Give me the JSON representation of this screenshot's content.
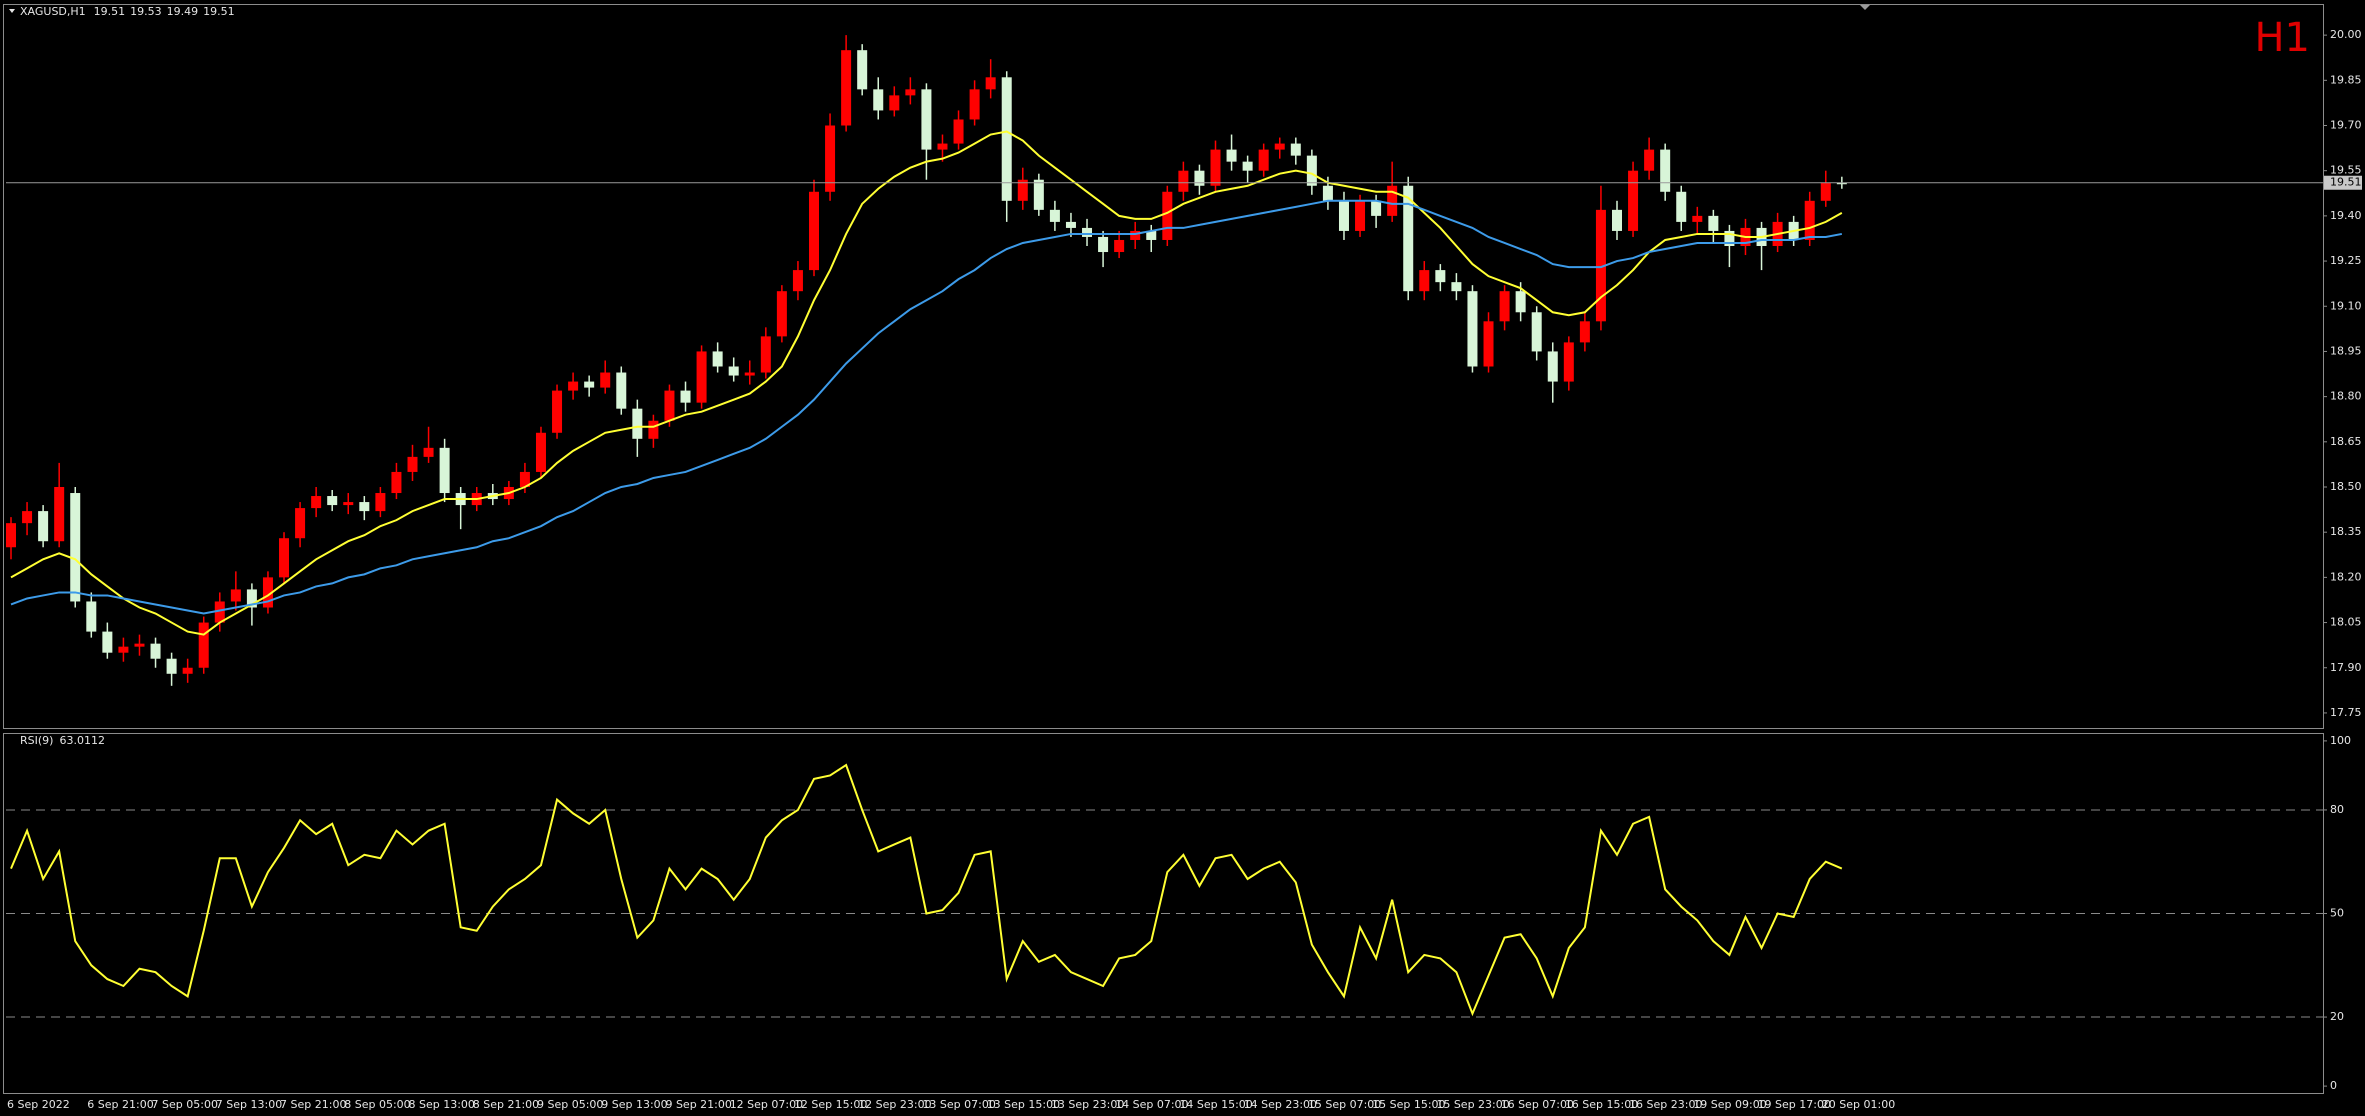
{
  "chart_data": [
    {
      "type": "candlestick",
      "title": "XAGUSD,H1",
      "annotation": "H1",
      "annotation_color": "#e00000",
      "up_color": "#ff0000",
      "down_color": "#d8f5d8",
      "price_line_color": "#9a9a9a",
      "ylim": [
        17.7,
        20.1
      ],
      "yticks": [
        17.75,
        {
          "value": 17.9,
          "label": "17.90"
        },
        18.05,
        {
          "value": 18.2,
          "label": "18.20"
        },
        18.35,
        {
          "value": 18.5,
          "label": "18.50"
        },
        18.65,
        {
          "value": 18.8,
          "label": "18.80"
        },
        18.95,
        {
          "value": 19.1,
          "label": "19.10"
        },
        19.25,
        {
          "value": 19.4,
          "label": "19.40"
        },
        19.55,
        {
          "value": 19.7,
          "label": "19.70"
        },
        19.85,
        {
          "value": 20,
          "label": "20.00"
        }
      ],
      "categories": [
        "6 Sep 2022",
        null,
        null,
        null,
        null,
        "6 Sep 21:00",
        null,
        null,
        null,
        "7 Sep 05:00",
        null,
        null,
        null,
        "7 Sep 13:00",
        null,
        null,
        null,
        "7 Sep 21:00",
        null,
        null,
        null,
        "8 Sep 05:00",
        null,
        null,
        null,
        "8 Sep 13:00",
        null,
        null,
        null,
        "8 Sep 21:00",
        null,
        null,
        null,
        "9 Sep 05:00",
        null,
        null,
        null,
        "9 Sep 13:00",
        null,
        null,
        null,
        "9 Sep 21:00",
        null,
        null,
        null,
        "12 Sep 07:00",
        null,
        null,
        null,
        "12 Sep 15:00",
        null,
        null,
        null,
        "12 Sep 23:00",
        null,
        null,
        null,
        "13 Sep 07:00",
        null,
        null,
        null,
        "13 Sep 15:00",
        null,
        null,
        null,
        "13 Sep 23:00",
        null,
        null,
        null,
        "14 Sep 07:00",
        null,
        null,
        null,
        "14 Sep 15:00",
        null,
        null,
        null,
        "14 Sep 23:00",
        null,
        null,
        null,
        "15 Sep 07:00",
        null,
        null,
        null,
        "15 Sep 15:00",
        null,
        null,
        null,
        "15 Sep 23:00",
        null,
        null,
        null,
        "16 Sep 07:00",
        null,
        null,
        null,
        "16 Sep 15:00",
        null,
        null,
        null,
        "16 Sep 23:00",
        null,
        null,
        null,
        "19 Sep 09:00",
        null,
        null,
        null,
        "19 Sep 17:00",
        null,
        null,
        null,
        "20 Sep 01:00",
        null
      ],
      "ohlc": [
        [
          18.3,
          18.4,
          18.26,
          18.38
        ],
        [
          18.38,
          18.45,
          18.34,
          18.42
        ],
        [
          18.42,
          18.44,
          18.3,
          18.32
        ],
        [
          18.32,
          18.58,
          18.3,
          18.5
        ],
        [
          18.48,
          18.5,
          18.1,
          18.12
        ],
        [
          18.12,
          18.15,
          18.0,
          18.02
        ],
        [
          18.02,
          18.05,
          17.93,
          17.95
        ],
        [
          17.95,
          18.0,
          17.92,
          17.97
        ],
        [
          17.97,
          18.01,
          17.94,
          17.98
        ],
        [
          17.98,
          18.0,
          17.9,
          17.93
        ],
        [
          17.93,
          17.95,
          17.84,
          17.88
        ],
        [
          17.88,
          17.93,
          17.85,
          17.9
        ],
        [
          17.9,
          18.07,
          17.88,
          18.05
        ],
        [
          18.05,
          18.15,
          18.02,
          18.12
        ],
        [
          18.12,
          18.22,
          18.09,
          18.16
        ],
        [
          18.16,
          18.18,
          18.04,
          18.1
        ],
        [
          18.1,
          18.22,
          18.08,
          18.2
        ],
        [
          18.2,
          18.35,
          18.18,
          18.33
        ],
        [
          18.33,
          18.45,
          18.3,
          18.43
        ],
        [
          18.43,
          18.5,
          18.4,
          18.47
        ],
        [
          18.47,
          18.49,
          18.42,
          18.44
        ],
        [
          18.44,
          18.48,
          18.41,
          18.45
        ],
        [
          18.45,
          18.47,
          18.39,
          18.42
        ],
        [
          18.42,
          18.5,
          18.4,
          18.48
        ],
        [
          18.48,
          18.58,
          18.46,
          18.55
        ],
        [
          18.55,
          18.64,
          18.52,
          18.6
        ],
        [
          18.6,
          18.7,
          18.58,
          18.63
        ],
        [
          18.63,
          18.66,
          18.45,
          18.48
        ],
        [
          18.48,
          18.5,
          18.36,
          18.44
        ],
        [
          18.44,
          18.5,
          18.42,
          18.48
        ],
        [
          18.48,
          18.51,
          18.44,
          18.46
        ],
        [
          18.46,
          18.52,
          18.44,
          18.5
        ],
        [
          18.5,
          18.58,
          18.48,
          18.55
        ],
        [
          18.55,
          18.7,
          18.53,
          18.68
        ],
        [
          18.68,
          18.84,
          18.66,
          18.82
        ],
        [
          18.82,
          18.88,
          18.79,
          18.85
        ],
        [
          18.85,
          18.87,
          18.8,
          18.83
        ],
        [
          18.83,
          18.92,
          18.81,
          18.88
        ],
        [
          18.88,
          18.9,
          18.74,
          18.76
        ],
        [
          18.76,
          18.79,
          18.6,
          18.66
        ],
        [
          18.66,
          18.74,
          18.63,
          18.72
        ],
        [
          18.72,
          18.84,
          18.7,
          18.82
        ],
        [
          18.82,
          18.85,
          18.75,
          18.78
        ],
        [
          18.78,
          18.97,
          18.76,
          18.95
        ],
        [
          18.95,
          18.98,
          18.88,
          18.9
        ],
        [
          18.9,
          18.93,
          18.85,
          18.87
        ],
        [
          18.87,
          18.92,
          18.84,
          18.88
        ],
        [
          18.88,
          19.03,
          18.86,
          19.0
        ],
        [
          19.0,
          19.17,
          18.98,
          19.15
        ],
        [
          19.15,
          19.25,
          19.12,
          19.22
        ],
        [
          19.22,
          19.52,
          19.2,
          19.48
        ],
        [
          19.48,
          19.74,
          19.45,
          19.7
        ],
        [
          19.7,
          20.0,
          19.68,
          19.95
        ],
        [
          19.95,
          19.97,
          19.8,
          19.82
        ],
        [
          19.82,
          19.86,
          19.72,
          19.75
        ],
        [
          19.75,
          19.83,
          19.73,
          19.8
        ],
        [
          19.8,
          19.86,
          19.77,
          19.82
        ],
        [
          19.82,
          19.84,
          19.52,
          19.62
        ],
        [
          19.62,
          19.67,
          19.58,
          19.64
        ],
        [
          19.64,
          19.75,
          19.62,
          19.72
        ],
        [
          19.72,
          19.85,
          19.7,
          19.82
        ],
        [
          19.82,
          19.92,
          19.79,
          19.86
        ],
        [
          19.86,
          19.88,
          19.38,
          19.45
        ],
        [
          19.45,
          19.56,
          19.42,
          19.52
        ],
        [
          19.52,
          19.54,
          19.4,
          19.42
        ],
        [
          19.42,
          19.45,
          19.35,
          19.38
        ],
        [
          19.38,
          19.41,
          19.33,
          19.36
        ],
        [
          19.36,
          19.39,
          19.3,
          19.33
        ],
        [
          19.33,
          19.35,
          19.23,
          19.28
        ],
        [
          19.28,
          19.35,
          19.26,
          19.32
        ],
        [
          19.32,
          19.38,
          19.29,
          19.35
        ],
        [
          19.35,
          19.37,
          19.28,
          19.32
        ],
        [
          19.32,
          19.5,
          19.3,
          19.48
        ],
        [
          19.48,
          19.58,
          19.45,
          19.55
        ],
        [
          19.55,
          19.57,
          19.47,
          19.5
        ],
        [
          19.5,
          19.65,
          19.48,
          19.62
        ],
        [
          19.62,
          19.67,
          19.55,
          19.58
        ],
        [
          19.58,
          19.6,
          19.51,
          19.55
        ],
        [
          19.55,
          19.64,
          19.53,
          19.62
        ],
        [
          19.62,
          19.66,
          19.59,
          19.64
        ],
        [
          19.64,
          19.66,
          19.57,
          19.6
        ],
        [
          19.6,
          19.62,
          19.47,
          19.5
        ],
        [
          19.5,
          19.53,
          19.42,
          19.45
        ],
        [
          19.45,
          19.48,
          19.32,
          19.35
        ],
        [
          19.35,
          19.47,
          19.33,
          19.45
        ],
        [
          19.45,
          19.47,
          19.36,
          19.4
        ],
        [
          19.4,
          19.58,
          19.38,
          19.5
        ],
        [
          19.5,
          19.53,
          19.12,
          19.15
        ],
        [
          19.15,
          19.25,
          19.12,
          19.22
        ],
        [
          19.22,
          19.24,
          19.15,
          19.18
        ],
        [
          19.18,
          19.21,
          19.12,
          19.15
        ],
        [
          19.15,
          19.17,
          18.88,
          18.9
        ],
        [
          18.9,
          19.08,
          18.88,
          19.05
        ],
        [
          19.05,
          19.17,
          19.02,
          19.15
        ],
        [
          19.15,
          19.18,
          19.05,
          19.08
        ],
        [
          19.08,
          19.1,
          18.92,
          18.95
        ],
        [
          18.95,
          18.98,
          18.78,
          18.85
        ],
        [
          18.85,
          19.0,
          18.82,
          18.98
        ],
        [
          18.98,
          19.08,
          18.95,
          19.05
        ],
        [
          19.05,
          19.5,
          19.02,
          19.42
        ],
        [
          19.42,
          19.45,
          19.32,
          19.35
        ],
        [
          19.35,
          19.58,
          19.33,
          19.55
        ],
        [
          19.55,
          19.66,
          19.52,
          19.62
        ],
        [
          19.62,
          19.64,
          19.45,
          19.48
        ],
        [
          19.48,
          19.5,
          19.35,
          19.38
        ],
        [
          19.38,
          19.43,
          19.34,
          19.4
        ],
        [
          19.4,
          19.42,
          19.31,
          19.35
        ],
        [
          19.35,
          19.37,
          19.23,
          19.3
        ],
        [
          19.3,
          19.39,
          19.27,
          19.36
        ],
        [
          19.36,
          19.38,
          19.22,
          19.3
        ],
        [
          19.3,
          19.41,
          19.28,
          19.38
        ],
        [
          19.38,
          19.4,
          19.3,
          19.32
        ],
        [
          19.32,
          19.48,
          19.3,
          19.45
        ],
        [
          19.45,
          19.55,
          19.43,
          19.51
        ],
        [
          19.51,
          19.53,
          19.49,
          19.51
        ]
      ],
      "series": [
        {
          "color": "#ffff33",
          "values": [
            18.2,
            18.23,
            18.26,
            18.28,
            18.26,
            18.21,
            18.17,
            18.13,
            18.1,
            18.08,
            18.05,
            18.02,
            18.01,
            18.05,
            18.08,
            18.11,
            18.14,
            18.18,
            18.22,
            18.26,
            18.29,
            18.32,
            18.34,
            18.37,
            18.39,
            18.42,
            18.44,
            18.46,
            18.46,
            18.46,
            18.47,
            18.48,
            18.5,
            18.53,
            18.58,
            18.62,
            18.65,
            18.68,
            18.69,
            18.7,
            18.7,
            18.72,
            18.74,
            18.75,
            18.77,
            18.79,
            18.81,
            18.85,
            18.9,
            19.0,
            19.12,
            19.22,
            19.34,
            19.44,
            19.49,
            19.53,
            19.56,
            19.58,
            19.59,
            19.61,
            19.64,
            19.67,
            19.68,
            19.65,
            19.6,
            19.56,
            19.52,
            19.48,
            19.44,
            19.4,
            19.39,
            19.39,
            19.41,
            19.44,
            19.46,
            19.48,
            19.49,
            19.5,
            19.52,
            19.54,
            19.55,
            19.54,
            19.51,
            19.5,
            19.49,
            19.48,
            19.48,
            19.46,
            19.41,
            19.36,
            19.3,
            19.24,
            19.2,
            19.18,
            19.16,
            19.12,
            19.08,
            19.07,
            19.08,
            19.13,
            19.17,
            19.22,
            19.28,
            19.32,
            19.33,
            19.34,
            19.34,
            19.34,
            19.33,
            19.33,
            19.34,
            19.35,
            19.36,
            19.38,
            19.41
          ]
        },
        {
          "color": "#3d9be9",
          "values": [
            18.11,
            18.13,
            18.14,
            18.15,
            18.15,
            18.14,
            18.14,
            18.13,
            18.12,
            18.11,
            18.1,
            18.09,
            18.08,
            18.09,
            18.1,
            18.11,
            18.12,
            18.14,
            18.15,
            18.17,
            18.18,
            18.2,
            18.21,
            18.23,
            18.24,
            18.26,
            18.27,
            18.28,
            18.29,
            18.3,
            18.32,
            18.33,
            18.35,
            18.37,
            18.4,
            18.42,
            18.45,
            18.48,
            18.5,
            18.51,
            18.53,
            18.54,
            18.55,
            18.57,
            18.59,
            18.61,
            18.63,
            18.66,
            18.7,
            18.74,
            18.79,
            18.85,
            18.91,
            18.96,
            19.01,
            19.05,
            19.09,
            19.12,
            19.15,
            19.19,
            19.22,
            19.26,
            19.29,
            19.31,
            19.32,
            19.33,
            19.34,
            19.34,
            19.34,
            19.34,
            19.34,
            19.35,
            19.36,
            19.36,
            19.37,
            19.38,
            19.39,
            19.4,
            19.41,
            19.42,
            19.43,
            19.44,
            19.45,
            19.45,
            19.45,
            19.45,
            19.44,
            19.44,
            19.42,
            19.4,
            19.38,
            19.36,
            19.33,
            19.31,
            19.29,
            19.27,
            19.24,
            19.23,
            19.23,
            19.23,
            19.25,
            19.26,
            19.28,
            19.29,
            19.3,
            19.31,
            19.31,
            19.31,
            19.31,
            19.32,
            19.32,
            19.32,
            19.33,
            19.33,
            19.34
          ]
        }
      ]
    },
    {
      "type": "line",
      "title": "RSI(9)",
      "color": "#ffff33",
      "level_color": "#8a8a8a",
      "ylim": [
        -2,
        102
      ],
      "yticks": [
        0,
        20,
        50,
        80,
        100
      ],
      "levels": [
        20,
        50,
        80
      ],
      "values": [
        63,
        74,
        60,
        68,
        42,
        35,
        31,
        29,
        34,
        33,
        29,
        26,
        45,
        66,
        66,
        52,
        62,
        69,
        77,
        73,
        76,
        64,
        67,
        66,
        74,
        70,
        74,
        76,
        46,
        45,
        52,
        57,
        60,
        64,
        83,
        79,
        76,
        80,
        60,
        43,
        48,
        63,
        57,
        63,
        60,
        54,
        60,
        72,
        77,
        80,
        89,
        90,
        93,
        80,
        68,
        70,
        72,
        50,
        51,
        56,
        67,
        68,
        31,
        42,
        36,
        38,
        33,
        31,
        29,
        37,
        38,
        42,
        62,
        67,
        58,
        66,
        67,
        60,
        63,
        65,
        59,
        41,
        33,
        26,
        46,
        37,
        54,
        33,
        38,
        37,
        33,
        21,
        32,
        43,
        44,
        37,
        26,
        40,
        46,
        74,
        67,
        76,
        78,
        57,
        52,
        48,
        42,
        38,
        49,
        40,
        50,
        49,
        60,
        65,
        63.0112
      ]
    }
  ]
}
